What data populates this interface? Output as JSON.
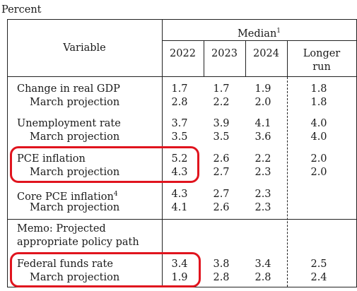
{
  "unit_label": "Percent",
  "header": {
    "variable": "Variable",
    "median": "Median",
    "median_note": "1",
    "years": [
      "2022",
      "2023",
      "2024"
    ],
    "longer_run_line1": "Longer",
    "longer_run_line2": "run"
  },
  "rows": [
    {
      "label": "Change in real GDP",
      "values": [
        "1.7",
        "1.7",
        "1.9",
        "1.8"
      ]
    },
    {
      "label": "March projection",
      "values": [
        "2.8",
        "2.2",
        "2.0",
        "1.8"
      ]
    },
    {
      "label": "Unemployment rate",
      "values": [
        "3.7",
        "3.9",
        "4.1",
        "4.0"
      ]
    },
    {
      "label": "March projection",
      "values": [
        "3.5",
        "3.5",
        "3.6",
        "4.0"
      ]
    },
    {
      "label": "PCE inflation",
      "values": [
        "5.2",
        "2.6",
        "2.2",
        "2.0"
      ]
    },
    {
      "label": "March projection",
      "values": [
        "4.3",
        "2.7",
        "2.3",
        "2.0"
      ]
    },
    {
      "label": "Core PCE inflation",
      "note": "4",
      "values": [
        "4.3",
        "2.7",
        "2.3",
        ""
      ]
    },
    {
      "label": "March projection",
      "values": [
        "4.1",
        "2.6",
        "2.3",
        ""
      ]
    }
  ],
  "memo": {
    "line1": "Memo: Projected",
    "line2": "appropriate policy path"
  },
  "memo_rows": [
    {
      "label": "Federal funds rate",
      "values": [
        "3.4",
        "3.8",
        "3.4",
        "2.5"
      ]
    },
    {
      "label": "March projection",
      "values": [
        "1.9",
        "2.8",
        "2.8",
        "2.4"
      ]
    }
  ],
  "highlight_color": "#e0141e"
}
